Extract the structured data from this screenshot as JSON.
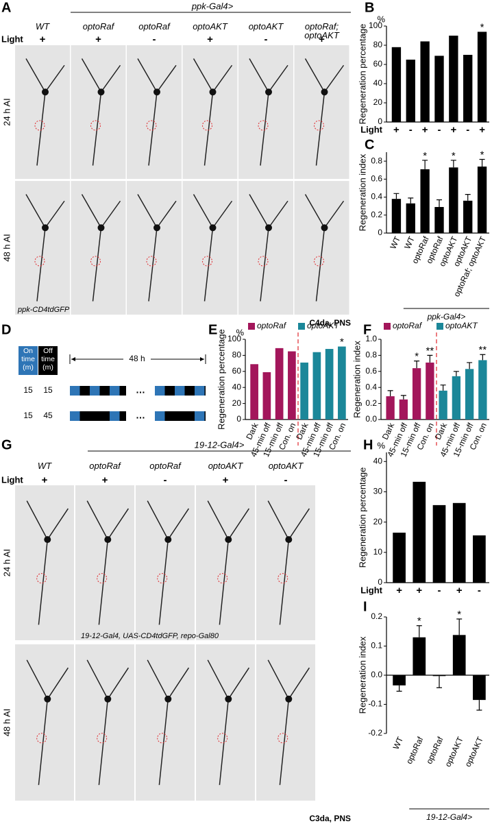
{
  "panel_labels": [
    "A",
    "B",
    "C",
    "D",
    "E",
    "F",
    "G",
    "H",
    "I"
  ],
  "panel_a": {
    "driver": "ppk-Gal4>",
    "light_title": "Light",
    "genotypes": [
      "WT",
      "optoRaf",
      "optoRaf",
      "optoAKT",
      "optoAKT",
      "optoRaf; optoAKT"
    ],
    "light": [
      "+",
      "+",
      "-",
      "+",
      "-",
      "+"
    ],
    "timepoints": [
      "24 h AI",
      "48 h AI"
    ],
    "reporter": "ppk-CD4tdGFP",
    "cell_type": "C4da, PNS"
  },
  "panel_d": {
    "header": [
      "On time (m)",
      "Off time (m)"
    ],
    "duration": "48 h",
    "schedules": [
      [
        15,
        15
      ],
      [
        15,
        45
      ]
    ],
    "ellipsis": "…"
  },
  "panel_g": {
    "driver": "19-12-Gal4>",
    "light_title": "Light",
    "genotypes": [
      "WT",
      "optoRaf",
      "optoRaf",
      "optoAKT",
      "optoAKT"
    ],
    "light": [
      "+",
      "+",
      "-",
      "+",
      "-"
    ],
    "timepoints": [
      "24 h AI",
      "48 h AI"
    ],
    "reporter": "19-12-Gal4, UAS-CD4tdGFP, repo-Gal80",
    "cell_type": "C3da, PNS"
  },
  "chart_data": [
    {
      "type": "bar",
      "ylabel": "Regeneration percentage",
      "yunit": "%",
      "category_title": "Light",
      "category_color": "#29a8e0",
      "categories": [
        "+",
        "-",
        "+",
        "-",
        "+",
        "-",
        "+"
      ],
      "values": [
        78,
        65,
        84,
        69,
        90,
        70,
        94
      ],
      "annotations": [
        null,
        null,
        null,
        null,
        null,
        null,
        "*"
      ],
      "color": "#000000",
      "ylim": [
        0,
        100
      ],
      "yticks": [
        0,
        20,
        40,
        60,
        80,
        100
      ]
    },
    {
      "type": "bar",
      "ylabel": "Regeneration index",
      "categories": [
        "WT",
        "WT",
        "optoRaf",
        "optoRaf",
        "optoAKT",
        "optoAKT",
        "optoRaf; optoAKT"
      ],
      "values": [
        0.38,
        0.33,
        0.71,
        0.29,
        0.73,
        0.36,
        0.74
      ],
      "errors": [
        0.06,
        0.06,
        0.1,
        0.08,
        0.08,
        0.07,
        0.08
      ],
      "annotations": [
        null,
        null,
        "*",
        null,
        "*",
        null,
        "*"
      ],
      "group_label": "ppk-Gal4>",
      "color": "#000000",
      "ylim": [
        0,
        0.9
      ],
      "yticks": [
        0,
        0.2,
        0.4,
        0.6,
        0.8
      ]
    },
    {
      "type": "bar",
      "ylabel": "Regeneration percentage",
      "yunit": "%",
      "categories": [
        "Dark",
        "45-min off",
        "15-min off",
        "Con. on"
      ],
      "category_colors": [
        null,
        null,
        "#e0262b",
        null
      ],
      "divider_color": "#e0262b",
      "series": [
        {
          "name": "optoRaf",
          "color": "#a3165b",
          "values": [
            69,
            59,
            89,
            85
          ],
          "annotations": [
            null,
            null,
            null,
            null
          ]
        },
        {
          "name": "optoAKT",
          "color": "#1b8799",
          "values": [
            71,
            84,
            88,
            91
          ],
          "annotations": [
            null,
            null,
            null,
            "*"
          ]
        }
      ],
      "ylim": [
        0,
        100
      ],
      "yticks": [
        0,
        20,
        40,
        60,
        80,
        100
      ]
    },
    {
      "type": "bar",
      "ylabel": "Regeneration index",
      "categories": [
        "Dark",
        "45-min off",
        "15-min off",
        "Con. on"
      ],
      "category_colors": [
        null,
        null,
        "#e0262b",
        null
      ],
      "divider_color": "#e0262b",
      "series": [
        {
          "name": "optoRaf",
          "color": "#a3165b",
          "values": [
            0.29,
            0.25,
            0.64,
            0.71
          ],
          "errors": [
            0.07,
            0.05,
            0.09,
            0.09
          ],
          "annotations": [
            null,
            null,
            "*",
            "**"
          ]
        },
        {
          "name": "optoAKT",
          "color": "#1b8799",
          "values": [
            0.36,
            0.54,
            0.63,
            0.74
          ],
          "errors": [
            0.07,
            0.06,
            0.08,
            0.07
          ],
          "annotations": [
            null,
            null,
            null,
            "**"
          ]
        }
      ],
      "ylim": [
        0,
        1.0
      ],
      "yticks": [
        {
          "value": 0,
          "label": "0.0"
        },
        0.2,
        0.4,
        0.6,
        0.8,
        {
          "value": 1.0,
          "label": "1.0"
        }
      ]
    },
    {
      "type": "bar",
      "ylabel": "Regeneration percentage",
      "yunit": "%",
      "category_title": "Light",
      "category_color": "#29a8e0",
      "categories": [
        "+",
        "+",
        "-",
        "+",
        "-"
      ],
      "values": [
        16.5,
        33.3,
        25.6,
        26.3,
        15.6
      ],
      "color": "#000000",
      "ylim": [
        0,
        43
      ],
      "yticks": [
        0,
        10,
        20,
        30,
        40
      ]
    },
    {
      "type": "bar",
      "ylabel": "Regeneration index",
      "categories": [
        "WT",
        "optoRaf",
        "optoRaf",
        "optoAKT",
        "optoAKT"
      ],
      "values": [
        -0.035,
        0.13,
        -0.003,
        0.138,
        -0.085
      ],
      "errors": [
        0.02,
        0.04,
        0.04,
        0.055,
        0.035
      ],
      "annotations": [
        null,
        "*",
        null,
        "*",
        null
      ],
      "group_label": "19-12-Gal4>",
      "color": "#000000",
      "ylim": [
        -0.2,
        0.2
      ],
      "yticks": [
        -0.2,
        -0.1,
        {
          "value": 0,
          "label": "0.0"
        },
        0.1,
        0.2
      ]
    }
  ]
}
